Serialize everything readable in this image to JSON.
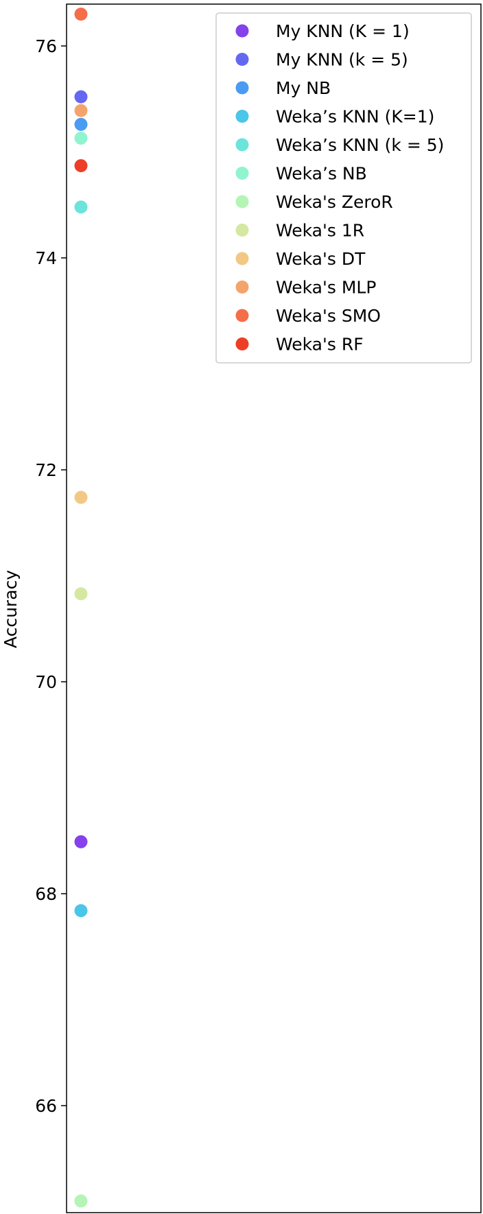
{
  "chart_data": {
    "type": "scatter",
    "title": "",
    "xlabel": "",
    "ylabel": "Accuracy",
    "ylim": [
      65.0,
      76.4
    ],
    "yticks": [
      66,
      68,
      70,
      72,
      74,
      76
    ],
    "grid": false,
    "legend_position": "top-right",
    "series": [
      {
        "name": "My KNN (K = 1)",
        "x": 0,
        "y": 68.49,
        "color": "#8541ea"
      },
      {
        "name": "My KNN (k = 5)",
        "x": 0,
        "y": 75.52,
        "color": "#6468f0"
      },
      {
        "name": "My NB",
        "x": 0,
        "y": 75.26,
        "color": "#4a9cf2"
      },
      {
        "name": "Weka’s KNN (K=1)",
        "x": 0,
        "y": 67.84,
        "color": "#4ac6e8"
      },
      {
        "name": "Weka’s KNN (k = 5)",
        "x": 0,
        "y": 74.48,
        "color": "#6be4dc"
      },
      {
        "name": "Weka’s NB",
        "x": 0,
        "y": 75.13,
        "color": "#90f4cf"
      },
      {
        "name": "Weka's ZeroR",
        "x": 0,
        "y": 65.1,
        "color": "#b4f4b4"
      },
      {
        "name": "Weka's 1R",
        "x": 0,
        "y": 70.83,
        "color": "#d5e8a2"
      },
      {
        "name": "Weka's DT",
        "x": 0,
        "y": 71.74,
        "color": "#f2c885"
      },
      {
        "name": "Weka's MLP",
        "x": 0,
        "y": 75.39,
        "color": "#f4a46b"
      },
      {
        "name": "Weka's SMO",
        "x": 0,
        "y": 76.3,
        "color": "#f46e4a"
      },
      {
        "name": "Weka's RF",
        "x": 0,
        "y": 74.87,
        "color": "#ec3f26"
      }
    ]
  }
}
